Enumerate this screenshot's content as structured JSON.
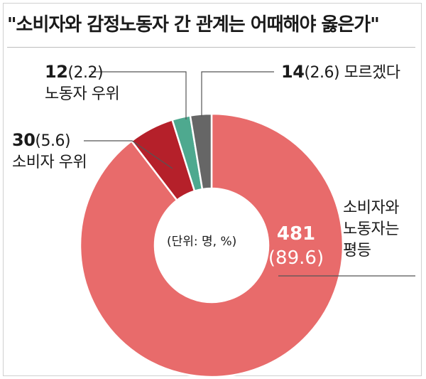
{
  "title": "\"소비자와 감정노동자 간 관계는 어때해야 옳은가\"",
  "unit_note": "(단위: 명, %)",
  "chart_data": {
    "type": "pie",
    "title": "\"소비자와 감정노동자 간 관계는 어때해야 옳은가\"",
    "unit": "명, %",
    "donut": true,
    "slices": [
      {
        "label": "소비자와 노동자는 평등",
        "value": 481,
        "percent": 89.6,
        "color": "#e86b6b"
      },
      {
        "label": "소비자 우위",
        "value": 30,
        "percent": 5.6,
        "color": "#b5202a"
      },
      {
        "label": "노동자 우위",
        "value": 12,
        "percent": 2.2,
        "color": "#4ea98f"
      },
      {
        "label": "모르겠다",
        "value": 14,
        "percent": 2.6,
        "color": "#666666"
      }
    ]
  },
  "labels": {
    "equal": {
      "value": "481",
      "percent": "(89.6)",
      "line1": "소비자와",
      "line2": "노동자는",
      "line3": "평등"
    },
    "consumer": {
      "value": "30",
      "percent": "(5.6)",
      "text": "소비자 우위"
    },
    "worker": {
      "value": "12",
      "percent": "(2.2)",
      "text": "노동자 우위"
    },
    "unknown": {
      "value": "14",
      "percent": "(2.6)",
      "text": "모르겠다"
    }
  }
}
